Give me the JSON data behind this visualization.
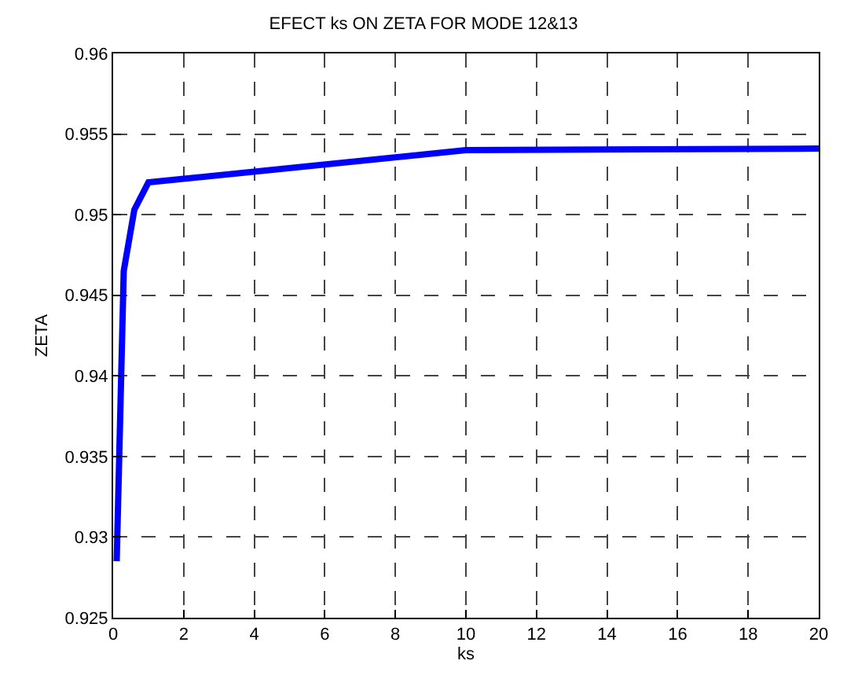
{
  "chart_data": {
    "type": "line",
    "title": "EFECT ks ON ZETA FOR MODE 12&13",
    "xlabel": "ks",
    "ylabel": "ZETA",
    "x": [
      0.1,
      0.3,
      0.6,
      1,
      10,
      20
    ],
    "series": [
      {
        "color": "#0000ff",
        "values": [
          0.9285,
          0.9465,
          0.9503,
          0.952,
          0.954,
          0.9541
        ]
      }
    ],
    "xlim": [
      0,
      20
    ],
    "xticks": [
      0,
      2,
      4,
      6,
      8,
      10,
      12,
      14,
      16,
      18,
      20
    ],
    "ylim": [
      0.925,
      0.96
    ],
    "yticks": [
      0.925,
      0.93,
      0.935,
      0.94,
      0.945,
      0.95,
      0.955,
      0.96
    ],
    "grid": true,
    "line_style": "solid",
    "marker": "none"
  }
}
